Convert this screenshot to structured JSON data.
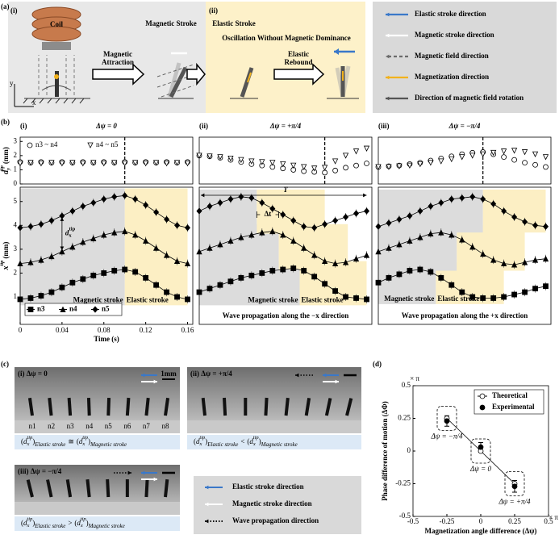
{
  "figure": {
    "panel_a": {
      "label": "(a)",
      "sub_i": "(i)",
      "sub_ii": "(ii)",
      "coil": "Coil",
      "magnetic_stroke": "Magnetic Stroke",
      "elastic_stroke": "Elastic Stroke",
      "oscillation": "Oscillation Without Magnetic Dominance",
      "attraction": [
        "Magnetic",
        "Attraction"
      ],
      "rebound": [
        "Elastic",
        "Rebound"
      ],
      "axis_y": "y",
      "axis_x": "x",
      "legend": [
        {
          "text": "Elastic stroke direction",
          "color": "#3a78c9",
          "style": "solid"
        },
        {
          "text": "Magnetic stroke direction",
          "color": "#ffffff",
          "style": "solid"
        },
        {
          "text": "Magnetic field direction",
          "color": "#6b6b6b",
          "style": "dashed"
        },
        {
          "text": "Magnetization direction",
          "color": "#f2b21c",
          "style": "solid"
        },
        {
          "text": "Direction of magnetic field rotation",
          "color": "#555555",
          "style": "solid"
        }
      ]
    },
    "panel_b": {
      "label": "(b)"
    },
    "panel_c": {
      "label": "(c)",
      "scale": "1mm",
      "pillars": [
        "n1",
        "n2",
        "n3",
        "n4",
        "n5",
        "n6",
        "n7",
        "n8"
      ],
      "open": "(",
      "close": ")",
      "base": "d",
      "sub": "x",
      "sup": "tip",
      "left": "Elastic stroke",
      "right": "Magnetic stroke",
      "photos": [
        {
          "title": "(i) Δψ = 0",
          "relation": "≅"
        },
        {
          "title": "(ii) Δψ = +π/4",
          "relation": "<"
        },
        {
          "title": "(iii) Δψ = −π/4",
          "relation": ">"
        }
      ],
      "legend": [
        {
          "text": "Elastic stroke direction",
          "color": "#3a78c9",
          "style": "solid"
        },
        {
          "text": "Magnetic stroke direction",
          "color": "#ffffff",
          "style": "solid"
        },
        {
          "text": "Wave propagation direction",
          "color": "#000000",
          "style": "dotted"
        }
      ]
    }
  },
  "chart_data": [
    {
      "type": "scatter",
      "label": "(i)",
      "title": "Δψ = 0",
      "x": [
        0,
        0.01,
        0.02,
        0.03,
        0.04,
        0.05,
        0.06,
        0.07,
        0.08,
        0.09,
        0.1,
        0.11,
        0.12,
        0.13,
        0.14,
        0.15,
        0.16
      ],
      "series": [
        {
          "name": "n3 ~ n4",
          "marker": "open-circle",
          "color": "#000000",
          "values": [
            1.55,
            1.5,
            1.55,
            1.5,
            1.55,
            1.5,
            1.55,
            1.5,
            1.55,
            1.5,
            1.55,
            1.5,
            1.55,
            1.5,
            1.55,
            1.5,
            1.55
          ]
        },
        {
          "name": "n4 ~ n5",
          "marker": "open-triangle-down",
          "color": "#000000",
          "values": [
            1.45,
            1.5,
            1.45,
            1.5,
            1.45,
            1.5,
            1.45,
            1.5,
            1.45,
            1.5,
            1.45,
            1.5,
            1.45,
            1.5,
            1.45,
            1.5,
            1.45
          ]
        }
      ],
      "xlim": [
        0,
        0.165
      ],
      "ylim": [
        0,
        3.3
      ],
      "yticks": [
        0,
        1,
        2,
        3
      ],
      "vline": 0.1,
      "legend": "top",
      "ylabel": {
        "base": "d",
        "sub": "y",
        "sup": "tip",
        "unit": "(mm)"
      }
    },
    {
      "type": "scatter",
      "label": "(ii)",
      "title": "Δψ = +π/4",
      "x": [
        0,
        0.01,
        0.02,
        0.03,
        0.04,
        0.05,
        0.06,
        0.07,
        0.08,
        0.09,
        0.1,
        0.11,
        0.12,
        0.13,
        0.14,
        0.15,
        0.16
      ],
      "series": [
        {
          "marker": "open-circle",
          "color": "#000000",
          "values": [
            2.0,
            1.95,
            1.85,
            1.7,
            1.55,
            1.4,
            1.3,
            1.2,
            1.1,
            1.0,
            0.9,
            0.85,
            0.8,
            0.95,
            1.15,
            1.3,
            1.45
          ]
        },
        {
          "marker": "open-triangle-down",
          "color": "#000000",
          "values": [
            2.0,
            1.95,
            1.9,
            1.8,
            1.7,
            1.6,
            1.55,
            1.5,
            1.4,
            1.3,
            1.2,
            1.1,
            1.15,
            1.6,
            2.0,
            2.3,
            2.5
          ]
        }
      ],
      "xlim": [
        0,
        0.165
      ],
      "ylim": [
        0,
        3.3
      ],
      "vline": 0.12
    },
    {
      "type": "scatter",
      "label": "(iii)",
      "title": "Δψ = −π/4",
      "x": [
        0,
        0.01,
        0.02,
        0.03,
        0.04,
        0.05,
        0.06,
        0.07,
        0.08,
        0.09,
        0.1,
        0.11,
        0.12,
        0.13,
        0.14,
        0.15,
        0.16
      ],
      "series": [
        {
          "marker": "open-circle",
          "color": "#000000",
          "values": [
            1.2,
            1.25,
            1.3,
            1.4,
            1.5,
            1.65,
            1.8,
            1.95,
            2.1,
            2.2,
            2.25,
            2.1,
            1.9,
            1.7,
            1.5,
            1.35,
            1.2
          ]
        },
        {
          "marker": "open-triangle-down",
          "color": "#000000",
          "values": [
            1.2,
            1.2,
            1.25,
            1.3,
            1.4,
            1.5,
            1.6,
            1.75,
            1.9,
            2.0,
            2.1,
            2.2,
            2.3,
            2.35,
            2.25,
            2.1,
            1.9
          ]
        }
      ],
      "xlim": [
        0,
        0.165
      ],
      "ylim": [
        0,
        3.3
      ],
      "vline": 0.1
    },
    {
      "type": "line",
      "x": [
        0,
        0.01,
        0.02,
        0.03,
        0.04,
        0.05,
        0.06,
        0.07,
        0.08,
        0.09,
        0.1,
        0.11,
        0.12,
        0.13,
        0.14,
        0.15,
        0.16
      ],
      "series": [
        {
          "name": "n3",
          "marker": "square",
          "color": "#000000",
          "values": [
            0.9,
            0.95,
            1.05,
            1.2,
            1.4,
            1.6,
            1.75,
            1.9,
            2.0,
            2.1,
            2.15,
            2.05,
            1.8,
            1.5,
            1.2,
            1.0,
            0.9
          ],
          "magnetic_stroke": [
            0,
            0.1
          ],
          "elastic_stroke": [
            0.1,
            0.16
          ]
        },
        {
          "name": "n4",
          "marker": "triangle",
          "color": "#000000",
          "values": [
            2.4,
            2.45,
            2.55,
            2.7,
            2.9,
            3.1,
            3.3,
            3.45,
            3.6,
            3.7,
            3.75,
            3.6,
            3.35,
            3.05,
            2.75,
            2.5,
            2.4
          ],
          "magnetic_stroke": [
            0,
            0.1
          ],
          "elastic_stroke": [
            0.1,
            0.16
          ]
        },
        {
          "name": "n5",
          "marker": "diamond",
          "color": "#000000",
          "values": [
            3.9,
            3.95,
            4.05,
            4.2,
            4.4,
            4.6,
            4.8,
            4.95,
            5.1,
            5.2,
            5.25,
            5.1,
            4.85,
            4.55,
            4.25,
            4.0,
            3.9
          ],
          "magnetic_stroke": [
            0,
            0.1
          ],
          "elastic_stroke": [
            0.1,
            0.16
          ]
        }
      ],
      "xlim": [
        0,
        0.165
      ],
      "ylim": [
        -0.15,
        5.6
      ],
      "yticks": [
        1,
        2,
        3,
        4,
        5
      ],
      "xticks": [
        0,
        0.04,
        0.08,
        0.12,
        0.16
      ],
      "xlabel": "Time (s)",
      "ylabel": {
        "base": "x",
        "sup": "tip",
        "unit": "(mm)"
      },
      "legend": "bottom",
      "stroke_labels": [
        "Magnetic stroke",
        "Elastic stroke"
      ],
      "amplitude": {
        "base": "d",
        "sub": "x",
        "sup": "tip"
      }
    },
    {
      "type": "line",
      "x": [
        0,
        0.01,
        0.02,
        0.03,
        0.04,
        0.05,
        0.06,
        0.07,
        0.08,
        0.09,
        0.1,
        0.11,
        0.12,
        0.13,
        0.14,
        0.15,
        0.16
      ],
      "series": [
        {
          "marker": "square",
          "color": "#000000",
          "values": [
            1.2,
            1.35,
            1.5,
            1.65,
            1.8,
            1.9,
            2.0,
            2.1,
            2.15,
            2.2,
            2.1,
            1.85,
            1.55,
            1.25,
            1.0,
            0.95,
            0.9
          ],
          "magnetic_stroke": [
            0,
            0.096
          ],
          "elastic_stroke": [
            0.096,
            0.16
          ]
        },
        {
          "marker": "triangle",
          "color": "#000000",
          "values": [
            2.9,
            3.05,
            3.2,
            3.35,
            3.5,
            3.6,
            3.7,
            3.75,
            3.6,
            3.35,
            3.05,
            2.75,
            2.5,
            2.4,
            2.45,
            2.6,
            2.75
          ],
          "magnetic_stroke": [
            0,
            0.076
          ],
          "elastic_stroke": [
            0.076,
            0.142
          ]
        },
        {
          "marker": "diamond",
          "color": "#000000",
          "values": [
            4.6,
            4.8,
            4.95,
            5.1,
            5.2,
            5.15,
            4.95,
            4.7,
            4.45,
            4.2,
            3.95,
            3.9,
            4.05,
            4.2,
            4.35,
            4.5,
            4.6
          ],
          "magnetic_stroke": [
            0,
            0.055
          ],
          "elastic_stroke": [
            0.055,
            0.12
          ]
        }
      ],
      "xlim": [
        0,
        0.165
      ],
      "ylim": [
        -0.15,
        5.6
      ],
      "stroke_labels": [
        "Magnetic stroke",
        "Elastic stroke"
      ],
      "note": "Wave propagation along the −x direction",
      "period": "T",
      "shift": "Δt"
    },
    {
      "type": "line",
      "x": [
        0,
        0.01,
        0.02,
        0.03,
        0.04,
        0.05,
        0.06,
        0.07,
        0.08,
        0.09,
        0.1,
        0.11,
        0.12,
        0.13,
        0.14,
        0.15,
        0.16
      ],
      "series": [
        {
          "marker": "square",
          "color": "#000000",
          "values": [
            1.6,
            1.8,
            1.95,
            2.1,
            2.15,
            2.05,
            1.8,
            1.5,
            1.2,
            1.0,
            0.95,
            0.95,
            1.0,
            1.1,
            1.2,
            1.35,
            1.45
          ],
          "magnetic_stroke": [
            0,
            0.055
          ],
          "elastic_stroke": [
            0.055,
            0.12
          ]
        },
        {
          "marker": "triangle",
          "color": "#000000",
          "values": [
            2.9,
            3.05,
            3.2,
            3.35,
            3.5,
            3.65,
            3.7,
            3.6,
            3.4,
            3.1,
            2.8,
            2.55,
            2.4,
            2.35,
            2.45,
            2.55,
            2.6
          ],
          "magnetic_stroke": [
            0,
            0.075
          ],
          "elastic_stroke": [
            0.075,
            0.14
          ]
        },
        {
          "marker": "diamond",
          "color": "#000000",
          "values": [
            3.95,
            4.1,
            4.25,
            4.4,
            4.6,
            4.8,
            4.95,
            5.1,
            5.15,
            5.2,
            5.1,
            4.9,
            4.6,
            4.35,
            4.15,
            4.0,
            3.95
          ],
          "magnetic_stroke": [
            0,
            0.1
          ],
          "elastic_stroke": [
            0.1,
            0.16
          ]
        }
      ],
      "xlim": [
        0,
        0.165
      ],
      "ylim": [
        -0.15,
        5.6
      ],
      "stroke_labels": [
        "Magnetic stroke",
        "Elastic stroke"
      ],
      "note": "Wave propagation along the +x direction"
    },
    {
      "type": "phase",
      "label": "(d)",
      "x": [
        -0.25,
        0,
        0.25
      ],
      "series": [
        {
          "name": "Theoretical",
          "marker": "open-circle",
          "color": "#000000",
          "values": [
            0.25,
            0,
            -0.25
          ]
        },
        {
          "name": "Experimental",
          "marker": "filled-circle",
          "color": "#000000",
          "values": [
            0.23,
            0.03,
            -0.27
          ],
          "errors": [
            0.04,
            0.035,
            0.045
          ]
        }
      ],
      "xlim": [
        -0.5,
        0.5
      ],
      "ylim": [
        -0.5,
        0.5
      ],
      "xticks": [
        -0.5,
        -0.25,
        0,
        0.25,
        0.5
      ],
      "yticks": [
        -0.5,
        -0.25,
        0,
        0.25,
        0.5
      ],
      "xlabel": "Magnetization angle difference (Δψ)",
      "ylabel": "Phase difference of motion (ΔΦ)",
      "x_unit": "× π",
      "y_unit": "× π",
      "legend": "top-right",
      "annotations": [
        "Δψ = −π/4",
        "Δψ = 0",
        "Δψ = +π/4"
      ]
    }
  ]
}
